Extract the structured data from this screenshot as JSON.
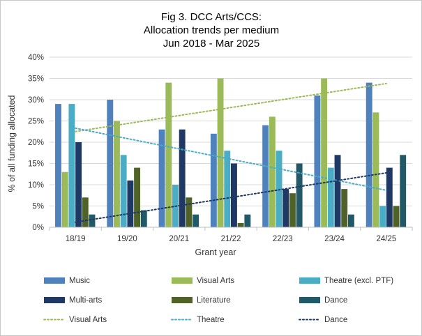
{
  "chart_data": {
    "type": "bar",
    "title_lines": [
      "Fig 3. DCC Arts/CCS:",
      "Allocation trends per medium",
      "Jun 2018 - Mar 2025"
    ],
    "xlabel": "Grant year",
    "ylabel": "% of all funding allocated",
    "categories": [
      "18/19",
      "19/20",
      "20/21",
      "21/22",
      "22/23",
      "23/24",
      "24/25"
    ],
    "ylim": [
      0,
      40
    ],
    "yticks": [
      "0%",
      "5%",
      "10%",
      "15%",
      "20%",
      "25%",
      "30%",
      "35%",
      "40%"
    ],
    "grid": true,
    "legend_position": "bottom",
    "series": [
      {
        "name": "Music",
        "color": "#4f81bd",
        "values": [
          29,
          30,
          23,
          22,
          24,
          31,
          34
        ]
      },
      {
        "name": "Visual Arts",
        "color": "#9bbb59",
        "values": [
          13,
          25,
          34,
          35,
          26,
          35,
          27
        ]
      },
      {
        "name": "Theatre (excl. PTF)",
        "color": "#4bacc6",
        "values": [
          29,
          17,
          10,
          18,
          18,
          14,
          5
        ]
      },
      {
        "name": "Multi-arts",
        "color": "#1f3864",
        "values": [
          20,
          11,
          23,
          15,
          9,
          17,
          14
        ]
      },
      {
        "name": "Literature",
        "color": "#4f6228",
        "values": [
          7,
          14,
          7,
          1,
          8,
          9,
          5
        ]
      },
      {
        "name": "Dance",
        "color": "#215968",
        "values": [
          3,
          4,
          3,
          3,
          15,
          3,
          17
        ]
      }
    ],
    "trendlines": [
      {
        "name": "Visual Arts",
        "color": "#9bbb59",
        "start": 22.5,
        "end": 33.8
      },
      {
        "name": "Theatre",
        "color": "#4bacc6",
        "start": 23.3,
        "end": 8.7
      },
      {
        "name": "Dance",
        "color": "#1f3864",
        "start": 1.2,
        "end": 12.8
      }
    ]
  }
}
